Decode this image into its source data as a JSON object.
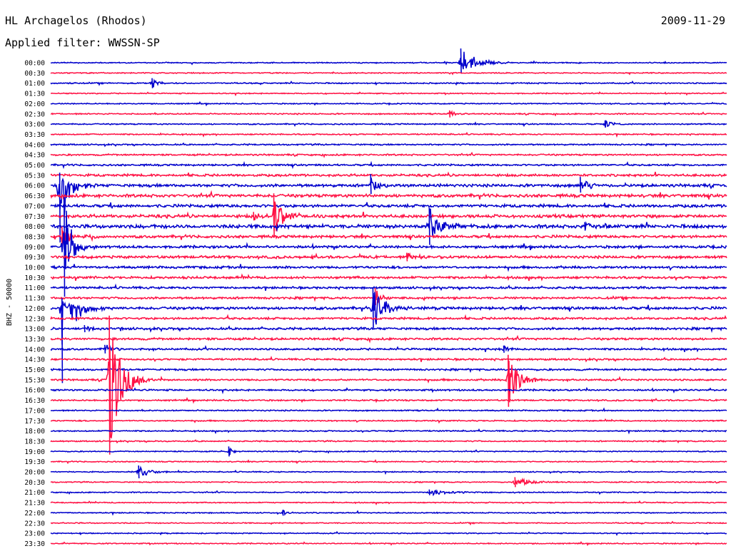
{
  "header": {
    "station": "HL Archagelos (Rhodos)",
    "date": "2009-11-29",
    "filter_label": "Applied filter: WWSSN-SP"
  },
  "chart_data": {
    "type": "line",
    "title": "HL Archagelos (Rhodos)",
    "subtitle": "Applied filter: WWSSN-SP",
    "date": "2009-11-29",
    "ylabel": "BHZ - 50000",
    "xlabel": "",
    "trace_minutes": 30,
    "trace_colors": [
      "#0000cc",
      "#ff1144"
    ],
    "rows": [
      "00:00",
      "00:30",
      "01:00",
      "01:30",
      "02:00",
      "02:30",
      "03:00",
      "03:30",
      "04:00",
      "04:30",
      "05:00",
      "05:30",
      "06:00",
      "06:30",
      "07:00",
      "07:30",
      "08:00",
      "08:30",
      "09:00",
      "09:30",
      "10:00",
      "10:30",
      "11:00",
      "11:30",
      "12:00",
      "12:30",
      "13:00",
      "13:30",
      "14:00",
      "14:30",
      "15:00",
      "15:30",
      "16:00",
      "16:30",
      "17:00",
      "17:30",
      "18:00",
      "18:30",
      "19:00",
      "19:30",
      "20:00",
      "20:30",
      "21:00",
      "21:30",
      "22:00",
      "22:30",
      "23:00",
      "23:30"
    ],
    "noise": [
      0.6,
      0.6,
      0.7,
      0.6,
      0.6,
      0.7,
      0.7,
      0.7,
      0.8,
      0.9,
      1.0,
      1.3,
      1.6,
      1.7,
      1.6,
      1.7,
      2.0,
      1.5,
      1.4,
      1.5,
      1.3,
      1.3,
      1.2,
      1.2,
      1.5,
      1.2,
      1.3,
      1.2,
      1.1,
      1.0,
      1.0,
      1.0,
      0.9,
      0.8,
      0.7,
      0.7,
      0.7,
      0.7,
      0.6,
      0.6,
      0.6,
      0.6,
      0.6,
      0.6,
      0.6,
      0.6,
      0.6,
      0.6
    ],
    "events": [
      {
        "row": 0,
        "minute": 18.2,
        "amplitude": 20,
        "up": 20,
        "down": 14,
        "duration": 1.2
      },
      {
        "row": 2,
        "minute": 4.5,
        "amplitude": 7,
        "up": 7,
        "down": 7,
        "duration": 0.4
      },
      {
        "row": 5,
        "minute": 17.7,
        "amplitude": 5,
        "up": 5,
        "down": 5,
        "duration": 0.4
      },
      {
        "row": 6,
        "minute": 24.6,
        "amplitude": 5,
        "up": 5,
        "down": 5,
        "duration": 0.6
      },
      {
        "row": 12,
        "minute": 0.4,
        "amplitude": 60,
        "up": 18,
        "down": 80,
        "duration": 0.6
      },
      {
        "row": 12,
        "minute": 14.2,
        "amplitude": 14,
        "up": 16,
        "down": 12,
        "duration": 0.6
      },
      {
        "row": 12,
        "minute": 23.5,
        "amplitude": 12,
        "up": 12,
        "down": 10,
        "duration": 0.6
      },
      {
        "row": 15,
        "minute": 9.9,
        "amplitude": 30,
        "up": 32,
        "down": 30,
        "duration": 0.7
      },
      {
        "row": 15,
        "minute": 9.0,
        "amplitude": 6,
        "up": 6,
        "down": 6,
        "duration": 0.6
      },
      {
        "row": 16,
        "minute": 16.8,
        "amplitude": 28,
        "up": 26,
        "down": 26,
        "duration": 0.7
      },
      {
        "row": 16,
        "minute": 23.7,
        "amplitude": 6,
        "up": 6,
        "down": 6,
        "duration": 0.6
      },
      {
        "row": 17,
        "minute": 0.5,
        "amplitude": 14,
        "up": 14,
        "down": 12,
        "duration": 0.8
      },
      {
        "row": 18,
        "minute": 0.6,
        "amplitude": 60,
        "up": 70,
        "down": 70,
        "duration": 0.5
      },
      {
        "row": 19,
        "minute": 15.8,
        "amplitude": 6,
        "up": 6,
        "down": 6,
        "duration": 1.0
      },
      {
        "row": 23,
        "minute": 14.4,
        "amplitude": 14,
        "up": 14,
        "down": 10,
        "duration": 0.4
      },
      {
        "row": 24,
        "minute": 0.5,
        "amplitude": 90,
        "up": 14,
        "down": 105,
        "duration": 0.7
      },
      {
        "row": 24,
        "minute": 14.3,
        "amplitude": 26,
        "up": 28,
        "down": 28,
        "duration": 0.9
      },
      {
        "row": 26,
        "minute": 1.5,
        "amplitude": 5,
        "up": 5,
        "down": 5,
        "duration": 0.6
      },
      {
        "row": 28,
        "minute": 2.4,
        "amplitude": 6,
        "up": 6,
        "down": 6,
        "duration": 0.6
      },
      {
        "row": 28,
        "minute": 20.1,
        "amplitude": 5,
        "up": 5,
        "down": 5,
        "duration": 0.4
      },
      {
        "row": 31,
        "minute": 2.6,
        "amplitude": 90,
        "up": 90,
        "down": 105,
        "duration": 0.8
      },
      {
        "row": 31,
        "minute": 20.3,
        "amplitude": 35,
        "up": 35,
        "down": 38,
        "duration": 0.7
      },
      {
        "row": 38,
        "minute": 7.9,
        "amplitude": 7,
        "up": 7,
        "down": 7,
        "duration": 0.3
      },
      {
        "row": 40,
        "minute": 3.9,
        "amplitude": 8,
        "up": 9,
        "down": 9,
        "duration": 0.8
      },
      {
        "row": 41,
        "minute": 20.6,
        "amplitude": 7,
        "up": 7,
        "down": 7,
        "duration": 1.0
      },
      {
        "row": 42,
        "minute": 16.8,
        "amplitude": 4,
        "up": 4,
        "down": 4,
        "duration": 1.4
      },
      {
        "row": 44,
        "minute": 10.3,
        "amplitude": 4,
        "up": 4,
        "down": 4,
        "duration": 0.4
      }
    ]
  }
}
